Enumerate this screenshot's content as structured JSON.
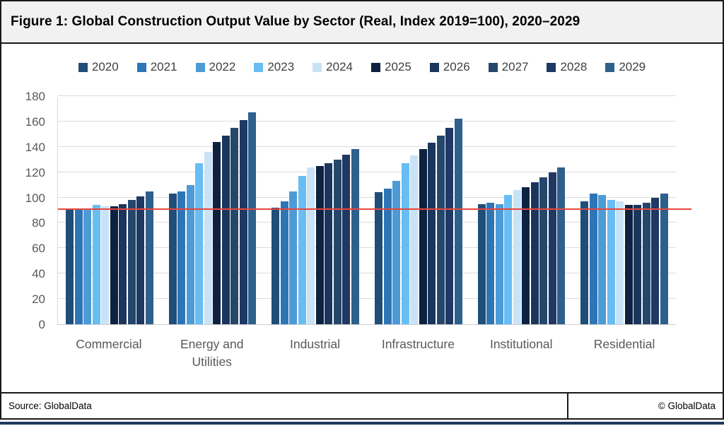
{
  "figure": {
    "title": "Figure 1: Global Construction Output Value by Sector (Real, Index 2019=100), 2020–2029"
  },
  "footer": {
    "source": "Source: GlobalData",
    "copyright": "© GlobalData"
  },
  "accent_colors": {
    "reference_line": "#E8463C",
    "bottom_bar": "#203A5F",
    "title_background": "#F1F1F2",
    "gridline": "#DCDCDC",
    "axis_text": "#595959",
    "legend_text": "#404040"
  },
  "chart_data": {
    "type": "bar",
    "title": "Global Construction Output Value by Sector (Real, Index 2019=100), 2020–2029",
    "categories": [
      "Commercial",
      "Energy and Utilities",
      "Industrial",
      "Infrastructure",
      "Institutional",
      "Residential"
    ],
    "series": [
      {
        "name": "2020",
        "color": "#1F4E79",
        "values": [
          91,
          103,
          92,
          104,
          95,
          97
        ]
      },
      {
        "name": "2021",
        "color": "#2E75B6",
        "values": [
          91,
          105,
          97,
          107,
          96,
          103
        ]
      },
      {
        "name": "2022",
        "color": "#4D9BD6",
        "values": [
          91,
          110,
          105,
          113,
          95,
          102
        ]
      },
      {
        "name": "2023",
        "color": "#68BDF2",
        "values": [
          94,
          127,
          117,
          127,
          102,
          98
        ]
      },
      {
        "name": "2024",
        "color": "#C9E3F6",
        "values": [
          93,
          136,
          124,
          133,
          106,
          97
        ]
      },
      {
        "name": "2025",
        "color": "#0D2240",
        "values": [
          93,
          144,
          125,
          138,
          108,
          94
        ]
      },
      {
        "name": "2026",
        "color": "#1B365D",
        "values": [
          95,
          149,
          127,
          143,
          112,
          94
        ]
      },
      {
        "name": "2027",
        "color": "#24476B",
        "values": [
          98,
          155,
          130,
          149,
          116,
          96
        ]
      },
      {
        "name": "2028",
        "color": "#1F3864",
        "values": [
          101,
          161,
          134,
          155,
          120,
          100
        ]
      },
      {
        "name": "2029",
        "color": "#2E608C",
        "values": [
          105,
          167,
          138,
          162,
          124,
          103
        ]
      }
    ],
    "ylim": [
      0,
      180
    ],
    "yticks": [
      0,
      20,
      40,
      60,
      80,
      100,
      120,
      140,
      160,
      180
    ],
    "grid": true,
    "legend_position": "top",
    "reference_line": {
      "value": 91,
      "color": "#E8463C"
    }
  }
}
